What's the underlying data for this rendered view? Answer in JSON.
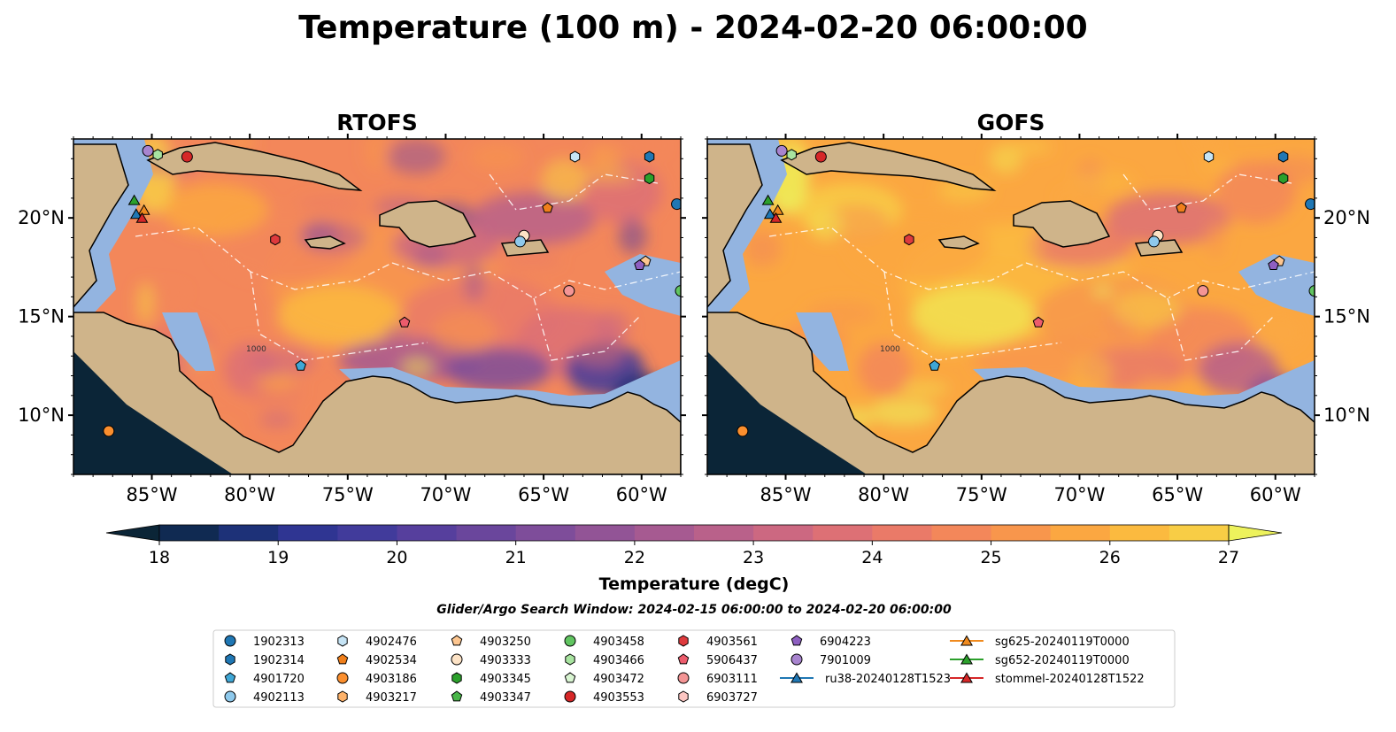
{
  "title": "Temperature (100 m) - 2024-02-20 06:00:00",
  "chart_data": {
    "type": "heatmap",
    "panels": [
      {
        "title": "RTOFS",
        "x_ticks": [
          "85°W",
          "80°W",
          "75°W",
          "70°W",
          "65°W",
          "60°W"
        ],
        "y_ticks": [
          "20°N",
          "15°N",
          "10°N"
        ],
        "y_tick_side": "left"
      },
      {
        "title": "GOFS",
        "x_ticks": [
          "85°W",
          "80°W",
          "75°W",
          "70°W",
          "65°W",
          "60°W"
        ],
        "y_ticks": [
          "20°N",
          "15°N",
          "10°N"
        ],
        "y_tick_side": "right"
      }
    ],
    "map_extent": {
      "lon": [
        -89,
        -58
      ],
      "lat": [
        7,
        24
      ]
    },
    "x_tick_values": [
      -85,
      -80,
      -75,
      -70,
      -65,
      -60
    ],
    "y_tick_values": [
      20,
      15,
      10
    ],
    "contour_label": "1000",
    "colorbar": {
      "label": "Temperature (degC)",
      "min": 18,
      "max": 27,
      "step": 0.5,
      "extend": "both",
      "ticks": [
        "18",
        "19",
        "20",
        "21",
        "22",
        "23",
        "24",
        "25",
        "26",
        "27"
      ],
      "colors": [
        "#0b2537",
        "#102a52",
        "#1d3178",
        "#2f3592",
        "#413b9b",
        "#563f9d",
        "#6a469c",
        "#7e4d9a",
        "#925496",
        "#a65a91",
        "#b9618a",
        "#cc6881",
        "#dd7075",
        "#ea7a68",
        "#f3875a",
        "#f8964c",
        "#fba741",
        "#fbba3f",
        "#f8cd45",
        "#f2e150",
        "#edf25c"
      ]
    },
    "search_window": "Glider/Argo Search Window: 2024-02-15 06:00:00 to 2024-02-20 06:00:00",
    "legend": [
      {
        "label": "1902313",
        "marker": "circle",
        "color": "#1f77b4"
      },
      {
        "label": "1902314",
        "marker": "hexagon",
        "color": "#1f77b4"
      },
      {
        "label": "4901720",
        "marker": "pentagon",
        "color": "#3fa7d6"
      },
      {
        "label": "4902113",
        "marker": "circle",
        "color": "#8ec9ec"
      },
      {
        "label": "4902476",
        "marker": "hexagon",
        "color": "#c6e4f5"
      },
      {
        "label": "4902534",
        "marker": "pentagon",
        "color": "#f07f1b"
      },
      {
        "label": "4903186",
        "marker": "circle",
        "color": "#fb8f2e"
      },
      {
        "label": "4903217",
        "marker": "hexagon",
        "color": "#fdb26a"
      },
      {
        "label": "4903250",
        "marker": "pentagon",
        "color": "#fdc690"
      },
      {
        "label": "4903333",
        "marker": "circle",
        "color": "#fde3c6"
      },
      {
        "label": "4903345",
        "marker": "hexagon",
        "color": "#2ca02c"
      },
      {
        "label": "4903347",
        "marker": "pentagon",
        "color": "#48b548"
      },
      {
        "label": "4903458",
        "marker": "circle",
        "color": "#61c561"
      },
      {
        "label": "4903466",
        "marker": "hexagon",
        "color": "#a8e4a0"
      },
      {
        "label": "4903472",
        "marker": "pentagon",
        "color": "#d9f5d2"
      },
      {
        "label": "4903553",
        "marker": "circle",
        "color": "#d62728"
      },
      {
        "label": "4903561",
        "marker": "hexagon",
        "color": "#de3a3d"
      },
      {
        "label": "5906437",
        "marker": "pentagon",
        "color": "#ec5c6c"
      },
      {
        "label": "6903111",
        "marker": "circle",
        "color": "#f49595"
      },
      {
        "label": "6903727",
        "marker": "hexagon",
        "color": "#fcc6c2"
      },
      {
        "label": "6904223",
        "marker": "pentagon",
        "color": "#8e5fc1"
      },
      {
        "label": "7901009",
        "marker": "circle",
        "color": "#a884cf"
      },
      {
        "label": "ru38-20240128T1523",
        "marker": "triangle-line",
        "color": "#1f77b4"
      },
      {
        "label": "sg625-20240119T0000",
        "marker": "triangle-line",
        "color": "#f08a1e"
      },
      {
        "label": "sg652-20240119T0000",
        "marker": "triangle-line",
        "color": "#2ca02c"
      },
      {
        "label": "stommel-20240128T1522",
        "marker": "triangle-line",
        "color": "#d62728"
      }
    ],
    "floats": [
      {
        "id": "7901009",
        "lon": -85.2,
        "lat": 23.4
      },
      {
        "id": "4903466",
        "lon": -84.7,
        "lat": 23.2
      },
      {
        "id": "4903553",
        "lon": -83.2,
        "lat": 23.1
      },
      {
        "id": "4902476",
        "lon": -63.4,
        "lat": 23.1
      },
      {
        "id": "1902314",
        "lon": -59.6,
        "lat": 23.1
      },
      {
        "id": "4903345",
        "lon": -59.6,
        "lat": 22.0
      },
      {
        "id": "1902313",
        "lon": -58.2,
        "lat": 20.7
      },
      {
        "id": "4902534",
        "lon": -64.8,
        "lat": 20.5
      },
      {
        "id": "4903333",
        "lon": -66.0,
        "lat": 19.1
      },
      {
        "id": "4902113",
        "lon": -66.2,
        "lat": 18.8
      },
      {
        "id": "4903561",
        "lon": -78.7,
        "lat": 18.9
      },
      {
        "id": "4903250",
        "lon": -59.8,
        "lat": 17.8
      },
      {
        "id": "6904223",
        "lon": -60.1,
        "lat": 17.6
      },
      {
        "id": "6903111",
        "lon": -63.7,
        "lat": 16.3
      },
      {
        "id": "4903458",
        "lon": -58.0,
        "lat": 16.3
      },
      {
        "id": "5906437",
        "lon": -72.1,
        "lat": 14.7
      },
      {
        "id": "4901720",
        "lon": -77.4,
        "lat": 12.5
      },
      {
        "id": "4903186",
        "lon": -87.2,
        "lat": 9.2
      }
    ],
    "gliders": [
      {
        "id": "sg652-20240119T0000",
        "lon": -85.9,
        "lat": 20.9
      },
      {
        "id": "sg625-20240119T0000",
        "lon": -85.4,
        "lat": 20.4
      },
      {
        "id": "ru38-20240128T1523",
        "lon": -85.8,
        "lat": 20.2
      },
      {
        "id": "stommel-20240128T1522",
        "lon": -85.5,
        "lat": 20.0
      }
    ]
  }
}
